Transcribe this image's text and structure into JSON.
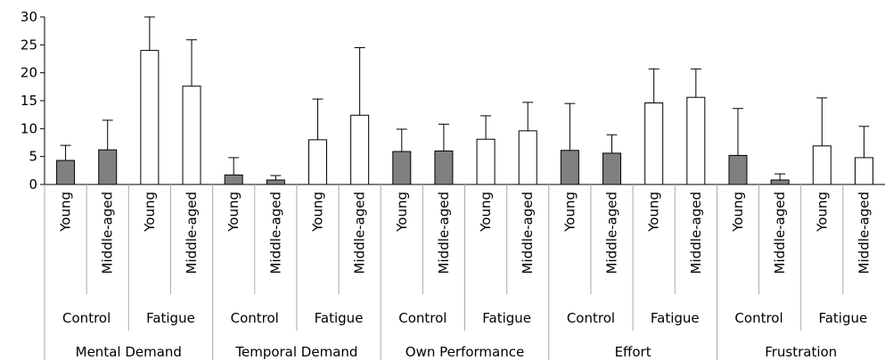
{
  "chart_data": {
    "type": "bar",
    "title": "",
    "xlabel": "",
    "ylabel": "",
    "ylim": [
      0,
      30
    ],
    "yticks": [
      0,
      5,
      10,
      15,
      20,
      25,
      30
    ],
    "grid": false,
    "legend": "none",
    "colors": {
      "Control": "#808080",
      "Fatigue": "#ffffff",
      "outline": "#000000"
    },
    "groups": [
      {
        "dimension": "Mental Demand",
        "conditions": [
          {
            "condition": "Control",
            "bars": [
              {
                "age": "Young",
                "value": 4.3,
                "error": 2.7
              },
              {
                "age": "Middle-aged",
                "value": 6.2,
                "error": 5.3
              }
            ]
          },
          {
            "condition": "Fatigue",
            "bars": [
              {
                "age": "Young",
                "value": 24.0,
                "error": 6.0
              },
              {
                "age": "Middle-aged",
                "value": 17.6,
                "error": 8.3
              }
            ]
          }
        ]
      },
      {
        "dimension": "Temporal Demand",
        "conditions": [
          {
            "condition": "Control",
            "bars": [
              {
                "age": "Young",
                "value": 1.7,
                "error": 3.1
              },
              {
                "age": "Middle-aged",
                "value": 0.8,
                "error": 0.8
              }
            ]
          },
          {
            "condition": "Fatigue",
            "bars": [
              {
                "age": "Young",
                "value": 8.0,
                "error": 7.3
              },
              {
                "age": "Middle-aged",
                "value": 12.4,
                "error": 12.1
              }
            ]
          }
        ]
      },
      {
        "dimension": "Own Performance",
        "conditions": [
          {
            "condition": "Control",
            "bars": [
              {
                "age": "Young",
                "value": 5.9,
                "error": 4.0
              },
              {
                "age": "Middle-aged",
                "value": 6.0,
                "error": 4.8
              }
            ]
          },
          {
            "condition": "Fatigue",
            "bars": [
              {
                "age": "Young",
                "value": 8.1,
                "error": 4.2
              },
              {
                "age": "Middle-aged",
                "value": 9.6,
                "error": 5.1
              }
            ]
          }
        ]
      },
      {
        "dimension": "Effort",
        "conditions": [
          {
            "condition": "Control",
            "bars": [
              {
                "age": "Young",
                "value": 6.1,
                "error": 8.4
              },
              {
                "age": "Middle-aged",
                "value": 5.6,
                "error": 3.3
              }
            ]
          },
          {
            "condition": "Fatigue",
            "bars": [
              {
                "age": "Young",
                "value": 14.6,
                "error": 6.1
              },
              {
                "age": "Middle-aged",
                "value": 15.6,
                "error": 5.1
              }
            ]
          }
        ]
      },
      {
        "dimension": "Frustration",
        "conditions": [
          {
            "condition": "Control",
            "bars": [
              {
                "age": "Young",
                "value": 5.2,
                "error": 8.4
              },
              {
                "age": "Middle-aged",
                "value": 0.8,
                "error": 1.1
              }
            ]
          },
          {
            "condition": "Fatigue",
            "bars": [
              {
                "age": "Young",
                "value": 6.9,
                "error": 8.6
              },
              {
                "age": "Middle-aged",
                "value": 4.8,
                "error": 5.6
              }
            ]
          }
        ]
      }
    ]
  }
}
